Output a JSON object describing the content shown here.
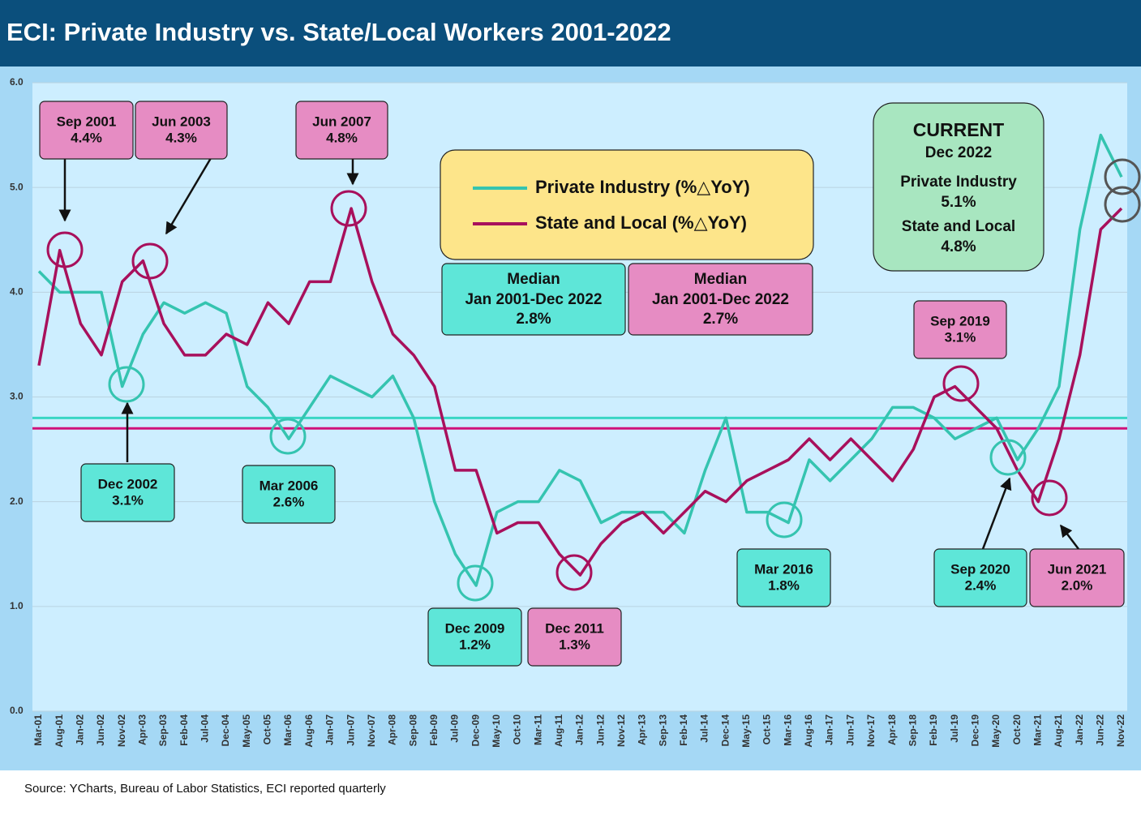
{
  "chart_data": {
    "type": "line",
    "title": "ECI: Private Industry vs. State/Local Workers 2001-2022",
    "source": "Source: YCharts, Bureau of Labor Statistics, ECI reported quarterly",
    "categories": [
      "Mar-01",
      "Aug-01",
      "Jan-02",
      "Jun-02",
      "Nov-02",
      "Apr-03",
      "Sep-03",
      "Feb-04",
      "Jul-04",
      "Dec-04",
      "May-05",
      "Oct-05",
      "Mar-06",
      "Aug-06",
      "Jan-07",
      "Jun-07",
      "Nov-07",
      "Apr-08",
      "Sep-08",
      "Feb-09",
      "Jul-09",
      "Dec-09",
      "May-10",
      "Oct-10",
      "Mar-11",
      "Aug-11",
      "Jan-12",
      "Jun-12",
      "Nov-12",
      "Apr-13",
      "Sep-13",
      "Feb-14",
      "Jul-14",
      "Dec-14",
      "May-15",
      "Oct-15",
      "Mar-16",
      "Aug-16",
      "Jan-17",
      "Jun-17",
      "Nov-17",
      "Apr-18",
      "Sep-18",
      "Feb-19",
      "Jul-19",
      "Dec-19",
      "May-20",
      "Oct-20",
      "Mar-21",
      "Aug-21",
      "Jan-22",
      "Jun-22",
      "Nov-22"
    ],
    "series": [
      {
        "name": "Private Industry (%△YoY)",
        "color": "#35c4b0",
        "values": [
          4.2,
          4.0,
          4.0,
          4.0,
          3.1,
          3.6,
          3.9,
          3.8,
          3.9,
          3.8,
          3.1,
          2.9,
          2.6,
          2.9,
          3.2,
          3.1,
          3.0,
          3.2,
          2.8,
          2.0,
          1.5,
          1.2,
          1.9,
          2.0,
          2.0,
          2.3,
          2.2,
          1.8,
          1.9,
          1.9,
          1.9,
          1.7,
          2.3,
          2.8,
          1.9,
          1.9,
          1.8,
          2.4,
          2.2,
          2.4,
          2.6,
          2.9,
          2.9,
          2.8,
          2.6,
          2.7,
          2.8,
          2.4,
          2.7,
          3.1,
          4.6,
          5.5,
          5.1
        ]
      },
      {
        "name": "State and Local (%△YoY)",
        "color": "#a8105c",
        "values": [
          3.3,
          4.4,
          3.7,
          3.4,
          4.1,
          4.3,
          3.7,
          3.4,
          3.4,
          3.6,
          3.5,
          3.9,
          3.7,
          4.1,
          4.1,
          4.8,
          4.1,
          3.6,
          3.4,
          3.1,
          2.3,
          2.3,
          1.7,
          1.8,
          1.8,
          1.5,
          1.3,
          1.6,
          1.8,
          1.9,
          1.7,
          1.9,
          2.1,
          2.0,
          2.2,
          2.3,
          2.4,
          2.6,
          2.4,
          2.6,
          2.4,
          2.2,
          2.5,
          3.0,
          3.1,
          2.9,
          2.7,
          2.3,
          2.0,
          2.6,
          3.4,
          4.6,
          4.8
        ]
      }
    ],
    "reference_lines": [
      {
        "value": 2.8,
        "color": "#3ad6c4"
      },
      {
        "value": 2.7,
        "color": "#d0127a"
      }
    ],
    "ylim": [
      0,
      6
    ],
    "yticks": [
      {
        "value": 0,
        "label": "0.0"
      },
      {
        "value": 1,
        "label": "1.0"
      },
      {
        "value": 2,
        "label": "2.0"
      },
      {
        "value": 3,
        "label": "3.0"
      },
      {
        "value": 4,
        "label": "4.0"
      },
      {
        "value": 5,
        "label": "5.0"
      },
      {
        "value": 6,
        "label": "6.0"
      }
    ],
    "grid": true,
    "annotations": [
      {
        "lines": [
          "Sep 2001",
          "4.4%"
        ],
        "color": "#e68cc3"
      },
      {
        "lines": [
          "Jun 2003",
          "4.3%"
        ],
        "color": "#e68cc3"
      },
      {
        "lines": [
          "Jun 2007",
          "4.8%"
        ],
        "color": "#e68cc3"
      },
      {
        "lines": [
          "Dec 2002",
          "3.1%"
        ],
        "color": "#5ee6d8"
      },
      {
        "lines": [
          "Mar 2006",
          "2.6%"
        ],
        "color": "#5ee6d8"
      },
      {
        "lines": [
          "Dec 2009",
          "1.2%"
        ],
        "color": "#5ee6d8"
      },
      {
        "lines": [
          "Dec 2011",
          "1.3%"
        ],
        "color": "#e68cc3"
      },
      {
        "lines": [
          "Mar 2016",
          "1.8%"
        ],
        "color": "#5ee6d8"
      },
      {
        "lines": [
          "Sep 2019",
          "3.1%"
        ],
        "color": "#e68cc3"
      },
      {
        "lines": [
          "Sep 2020",
          "2.4%"
        ],
        "color": "#5ee6d8"
      },
      {
        "lines": [
          "Jun 2021",
          "2.0%"
        ],
        "color": "#e68cc3"
      },
      {
        "lines": [
          "Median",
          "Jan 2001-Dec 2022",
          "2.8%"
        ],
        "color": "#5ee6d8"
      },
      {
        "lines": [
          "Median",
          "Jan 2001-Dec 2022",
          "2.7%"
        ],
        "color": "#e68cc3"
      },
      {
        "lines": [
          "CURRENT",
          "Dec 2022",
          "Private Industry",
          "5.1%",
          "State and Local",
          "4.8%"
        ],
        "color": "#a8e6c0"
      }
    ]
  }
}
